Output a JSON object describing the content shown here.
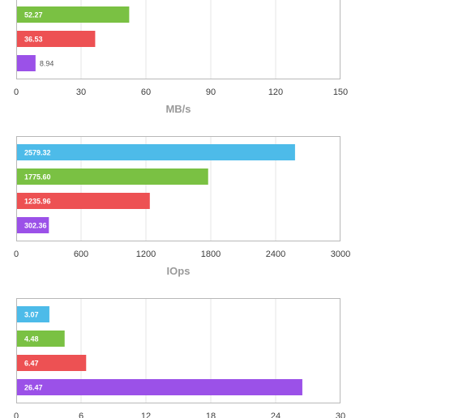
{
  "chart_data": [
    {
      "type": "bar",
      "orientation": "horizontal",
      "xlabel": "MB/s",
      "xlim": [
        0,
        150
      ],
      "ticks": [
        "0",
        "30",
        "60",
        "90",
        "120",
        "150"
      ],
      "tick_values": [
        0,
        30,
        60,
        90,
        120,
        150
      ],
      "grid": true,
      "bars": [
        {
          "value": 52.27,
          "label": "52.27",
          "color": "#7ac143"
        },
        {
          "value": 36.53,
          "label": "36.53",
          "color": "#ed5153"
        },
        {
          "value": 8.94,
          "label": "8.94",
          "color": "#9b51e8"
        }
      ]
    },
    {
      "type": "bar",
      "orientation": "horizontal",
      "xlabel": "IOps",
      "xlim": [
        0,
        3000
      ],
      "ticks": [
        "0",
        "600",
        "1200",
        "1800",
        "2400",
        "3000"
      ],
      "tick_values": [
        0,
        600,
        1200,
        1800,
        2400,
        3000
      ],
      "grid": true,
      "bars": [
        {
          "value": 2579.32,
          "label": "2579.32",
          "color": "#4dbbe9"
        },
        {
          "value": 1775.6,
          "label": "1775.60",
          "color": "#7ac143"
        },
        {
          "value": 1235.96,
          "label": "1235.96",
          "color": "#ed5153"
        },
        {
          "value": 302.36,
          "label": "302.36",
          "color": "#9b51e8"
        }
      ]
    },
    {
      "type": "bar",
      "orientation": "horizontal",
      "xlabel": "",
      "xlim": [
        0,
        30
      ],
      "ticks": [
        "0",
        "6",
        "12",
        "18",
        "24",
        "30"
      ],
      "tick_values": [
        0,
        6,
        12,
        18,
        24,
        30
      ],
      "grid": true,
      "bars": [
        {
          "value": 3.07,
          "label": "3.07",
          "color": "#4dbbe9"
        },
        {
          "value": 4.48,
          "label": "4.48",
          "color": "#7ac143"
        },
        {
          "value": 6.47,
          "label": "6.47",
          "color": "#ed5153"
        },
        {
          "value": 26.47,
          "label": "26.47",
          "color": "#9b51e8"
        }
      ]
    }
  ]
}
